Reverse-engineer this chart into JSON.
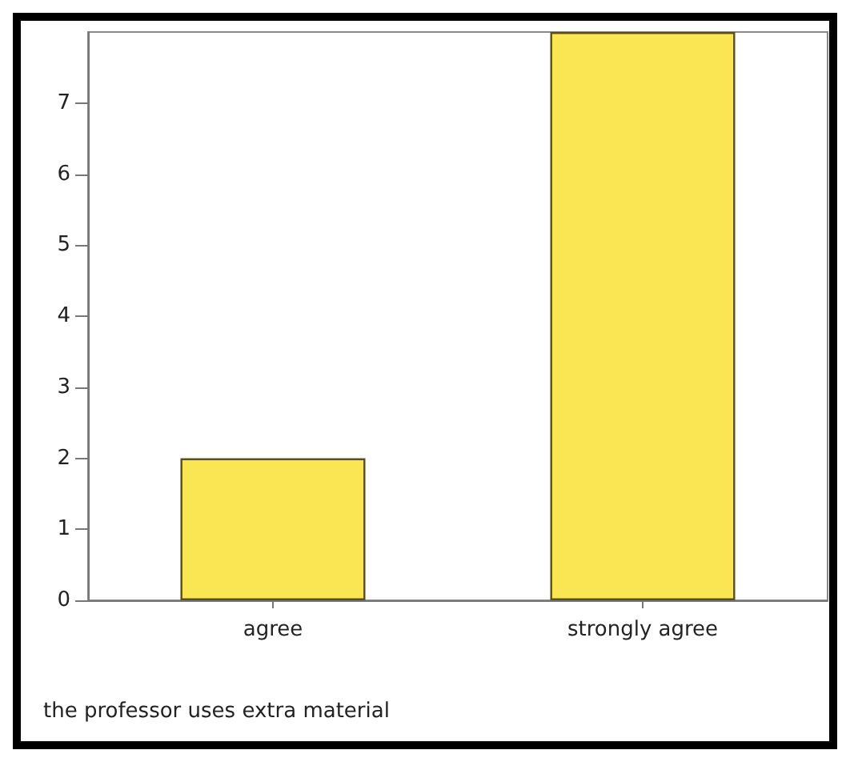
{
  "chart_data": {
    "type": "bar",
    "categories": [
      "agree",
      "strongly agree"
    ],
    "values": [
      2,
      8
    ],
    "color": "#fae552",
    "ylim": [
      0,
      8
    ],
    "yticks": [
      0,
      1,
      2,
      3,
      4,
      5,
      6,
      7
    ],
    "grid": false,
    "annotations": [
      "the professor uses extra material"
    ]
  }
}
